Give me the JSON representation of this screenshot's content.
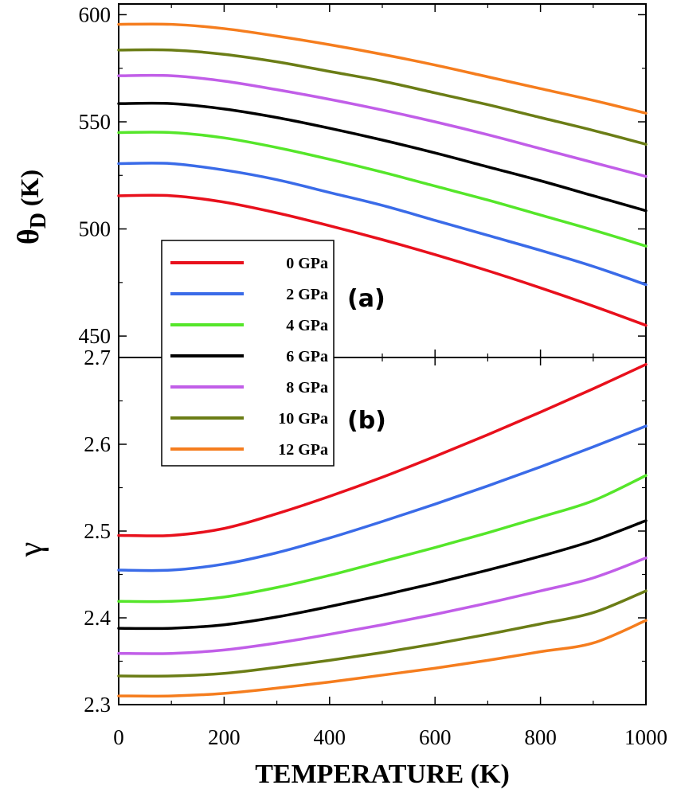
{
  "chart_data": [
    {
      "panel": "(a)",
      "type": "line",
      "xlabel": "",
      "ylabel_main": "θ",
      "ylabel_sub": "D",
      "ylabel_unit": "(K)",
      "xlim": [
        0,
        1000
      ],
      "ylim": [
        440,
        605
      ],
      "yticks": [
        450,
        500,
        550,
        600
      ],
      "grid": false,
      "legend_placement": "bottom-left",
      "x": [
        0,
        100,
        200,
        300,
        400,
        500,
        600,
        700,
        800,
        900,
        1000
      ],
      "series": [
        {
          "name": "0 GPa",
          "color": "#e8101c",
          "values": [
            515.5,
            515.5,
            512.5,
            507.5,
            501.5,
            495,
            488,
            480.5,
            472.5,
            464,
            455
          ]
        },
        {
          "name": "2 GPa",
          "color": "#3a6be8",
          "values": [
            530.5,
            530.5,
            527.5,
            523,
            517,
            511,
            504,
            497,
            490,
            482.5,
            474
          ]
        },
        {
          "name": "4 GPa",
          "color": "#55e62a",
          "values": [
            545,
            545,
            542.5,
            538,
            532.5,
            526.5,
            520,
            513.5,
            506.5,
            499.5,
            492
          ]
        },
        {
          "name": "6 GPa",
          "color": "#000000",
          "values": [
            558.5,
            558.5,
            556,
            552,
            547,
            541.5,
            535.5,
            529,
            522.5,
            515.5,
            508.5
          ]
        },
        {
          "name": "8 GPa",
          "color": "#c15ee8",
          "values": [
            571.5,
            571.5,
            569,
            565,
            560.5,
            555.5,
            550,
            544,
            537.5,
            531,
            524.5
          ]
        },
        {
          "name": "10 GPa",
          "color": "#6b7d16",
          "values": [
            583.5,
            583.5,
            581.5,
            578,
            573.5,
            569,
            563.5,
            558,
            552,
            546,
            539.5
          ]
        },
        {
          "name": "12 GPa",
          "color": "#f57d1e",
          "values": [
            595.5,
            595.5,
            593.5,
            590,
            586,
            581.5,
            576.5,
            571,
            565.5,
            560,
            554
          ]
        }
      ]
    },
    {
      "panel": "(b)",
      "type": "line",
      "xlabel": "TEMPERATURE (K)",
      "ylabel": "γ",
      "xlim": [
        0,
        1000
      ],
      "ylim": [
        2.3,
        2.7
      ],
      "xticks": [
        0,
        200,
        400,
        600,
        800,
        1000
      ],
      "yticks": [
        2.3,
        2.4,
        2.5,
        2.6,
        2.7
      ],
      "grid": false,
      "x": [
        0,
        100,
        200,
        300,
        400,
        500,
        600,
        700,
        800,
        900,
        1000
      ],
      "series": [
        {
          "name": "0 GPa",
          "color": "#e8101c",
          "values": [
            2.495,
            2.495,
            2.503,
            2.52,
            2.54,
            2.562,
            2.586,
            2.611,
            2.637,
            2.664,
            2.692
          ]
        },
        {
          "name": "2 GPa",
          "color": "#3a6be8",
          "values": [
            2.455,
            2.455,
            2.462,
            2.475,
            2.492,
            2.511,
            2.531,
            2.552,
            2.574,
            2.597,
            2.621
          ]
        },
        {
          "name": "4 GPa",
          "color": "#55e62a",
          "values": [
            2.419,
            2.419,
            2.424,
            2.435,
            2.449,
            2.465,
            2.481,
            2.498,
            2.516,
            2.535,
            2.564
          ]
        },
        {
          "name": "6 GPa",
          "color": "#000000",
          "values": [
            2.388,
            2.388,
            2.392,
            2.401,
            2.413,
            2.426,
            2.44,
            2.455,
            2.471,
            2.489,
            2.512
          ]
        },
        {
          "name": "8 GPa",
          "color": "#c15ee8",
          "values": [
            2.359,
            2.359,
            2.363,
            2.371,
            2.381,
            2.392,
            2.404,
            2.417,
            2.431,
            2.446,
            2.469
          ]
        },
        {
          "name": "10 GPa",
          "color": "#6b7d16",
          "values": [
            2.333,
            2.333,
            2.336,
            2.343,
            2.351,
            2.36,
            2.37,
            2.381,
            2.393,
            2.406,
            2.431
          ]
        },
        {
          "name": "12 GPa",
          "color": "#f57d1e",
          "values": [
            2.31,
            2.31,
            2.313,
            2.319,
            2.326,
            2.334,
            2.342,
            2.351,
            2.361,
            2.371,
            2.397
          ]
        }
      ]
    }
  ]
}
